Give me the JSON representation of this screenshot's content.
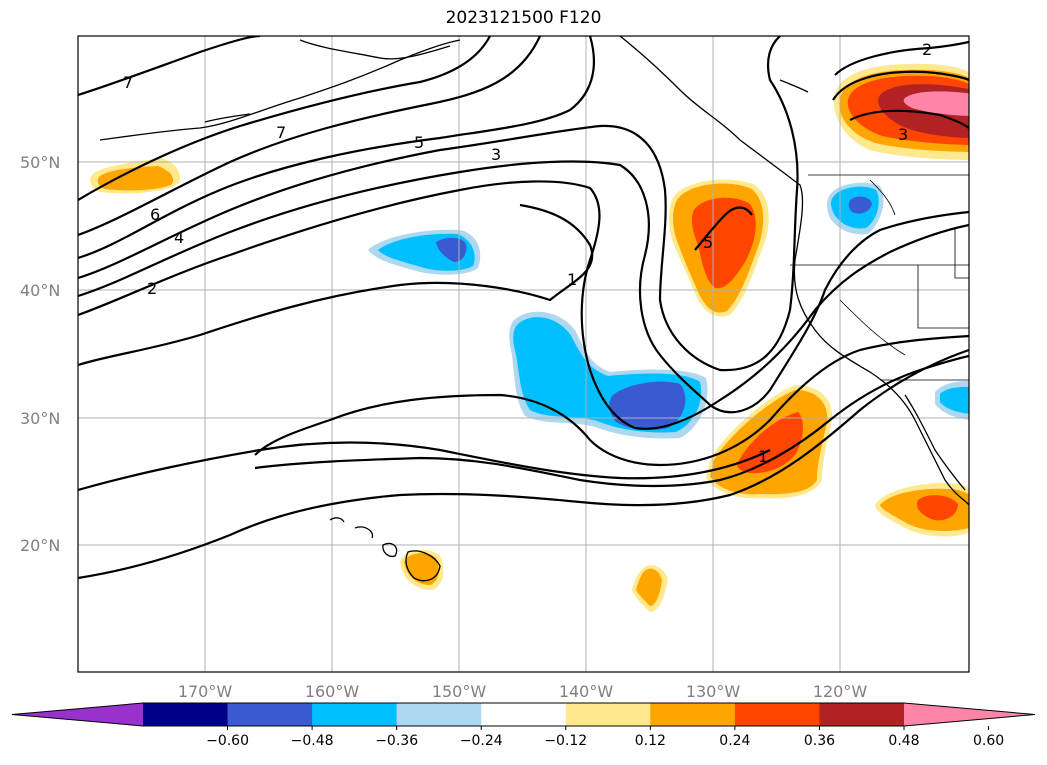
{
  "title": "2023121500 F120",
  "map": {
    "lat_labels": [
      "50°N",
      "40°N",
      "30°N",
      "20°N"
    ],
    "lon_labels": [
      "170°W",
      "160°W",
      "150°W",
      "140°W",
      "130°W",
      "120°W"
    ],
    "contour_labels": [
      "7",
      "7",
      "5",
      "3",
      "6",
      "4",
      "2",
      "1",
      "5",
      "1",
      "2",
      "3"
    ]
  },
  "colorbar": {
    "levels": [
      "−0.60",
      "−0.48",
      "−0.36",
      "−0.24",
      "−0.12",
      "0.12",
      "0.24",
      "0.36",
      "0.48",
      "0.60"
    ],
    "colors": [
      "#9932cc",
      "#00008b",
      "#3a5bd0",
      "#00bfff",
      "#add8f0",
      "#ffffff",
      "#ffe98c",
      "#ffa500",
      "#ff4500",
      "#b22222",
      "#ff85a8"
    ]
  }
}
